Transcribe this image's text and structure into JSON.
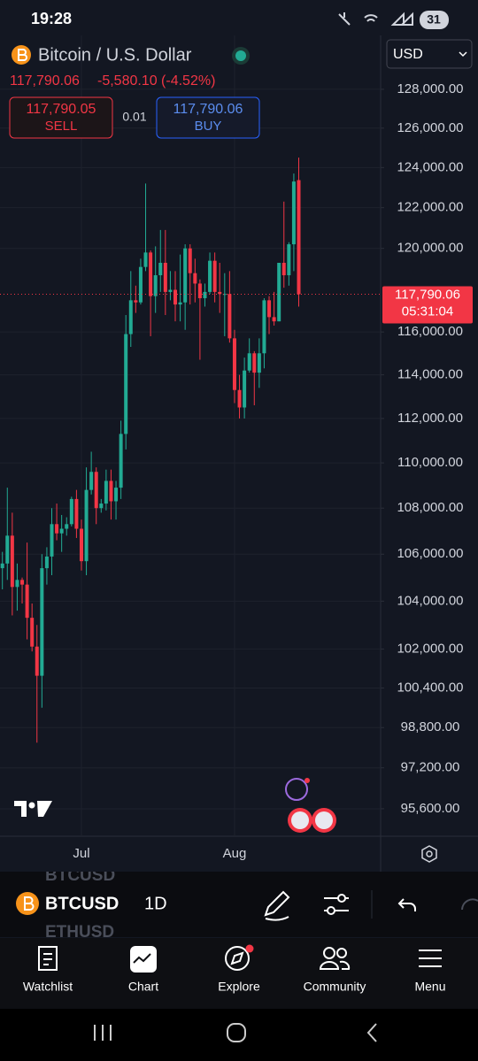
{
  "status_bar": {
    "time": "19:28",
    "battery": "31"
  },
  "header": {
    "symbol": "Bitcoin / U.S. Dollar",
    "currency": "USD",
    "price": "117,790.06",
    "change": "-5,580.10 (-4.52%)",
    "sell_price": "117,790.05",
    "sell": "SELL",
    "spread": "0.01",
    "buy_price": "117,790.06",
    "buy": "BUY"
  },
  "chart_data": {
    "type": "candlestick",
    "categories": [
      null,
      null,
      null,
      null,
      null,
      null,
      null,
      null,
      null,
      null,
      null,
      null,
      null,
      null,
      null,
      null,
      "Jul",
      null,
      null,
      null,
      null,
      null,
      null,
      null,
      null,
      null,
      null,
      null,
      null,
      null,
      null,
      null,
      null,
      null,
      null,
      null,
      null,
      null,
      null,
      null,
      null,
      null,
      null,
      null,
      null,
      null,
      null,
      "Aug",
      null,
      null,
      null,
      null,
      null,
      null,
      null,
      null,
      null,
      null,
      null,
      null,
      null
    ],
    "open": [
      105400,
      105600,
      106800,
      104600,
      104900,
      104700,
      103300,
      102100,
      100900,
      105400,
      105900,
      107300,
      106900,
      107100,
      107300,
      108400,
      107100,
      105700,
      108800,
      109600,
      108000,
      108200,
      109200,
      108300,
      108900,
      111300,
      115900,
      117500,
      117400,
      119100,
      119800,
      117700,
      118700,
      119300,
      117900,
      118000,
      117300,
      117400,
      120000,
      118800,
      118300,
      117600,
      117900,
      119400,
      117900,
      117800,
      117800,
      115700,
      113300,
      112500,
      114200,
      115000,
      114100,
      115000,
      117500,
      116700,
      116500,
      119300,
      118700,
      120200,
      123370.16
    ],
    "high": [
      106100,
      108900,
      107800,
      105600,
      105000,
      106500,
      103900,
      103000,
      106000,
      106300,
      108000,
      108200,
      107700,
      107600,
      108500,
      108800,
      107500,
      109800,
      110500,
      109800,
      108400,
      109700,
      109700,
      109200,
      111900,
      116800,
      118900,
      118200,
      119500,
      123200,
      119900,
      120100,
      120900,
      120900,
      118900,
      118900,
      119700,
      120200,
      120200,
      119500,
      118500,
      118300,
      119800,
      119800,
      119300,
      118800,
      118900,
      116100,
      114000,
      114800,
      115700,
      115100,
      115700,
      117600,
      117700,
      117900,
      119300,
      122300,
      120300,
      123700,
      124500
    ],
    "low": [
      104500,
      104900,
      103400,
      103600,
      103900,
      102400,
      101900,
      98200,
      99600,
      104700,
      105100,
      106600,
      106100,
      106800,
      107200,
      106700,
      105300,
      105100,
      108600,
      107300,
      107800,
      107900,
      107500,
      107500,
      108400,
      110600,
      115300,
      116900,
      117300,
      118900,
      115800,
      116900,
      117900,
      116800,
      117500,
      116500,
      116500,
      116100,
      117300,
      117400,
      114700,
      117200,
      117800,
      117400,
      116900,
      115800,
      115500,
      112700,
      112000,
      112000,
      114100,
      112600,
      113400,
      114300,
      115900,
      116300,
      116500,
      118100,
      118200,
      118900,
      117200
    ],
    "close": [
      105600,
      106800,
      104600,
      104900,
      104700,
      103300,
      102100,
      100900,
      105400,
      105900,
      107300,
      106900,
      107100,
      107300,
      108400,
      107100,
      105700,
      108800,
      109600,
      108000,
      108200,
      109200,
      108300,
      108900,
      111300,
      115900,
      117500,
      117400,
      119100,
      119800,
      117700,
      118700,
      119300,
      117900,
      118000,
      117300,
      117400,
      120000,
      118800,
      118300,
      117600,
      117900,
      119400,
      117900,
      117800,
      117800,
      115700,
      113300,
      112500,
      114200,
      115000,
      114100,
      115000,
      117500,
      116700,
      116500,
      119300,
      118700,
      120200,
      123300,
      117790.06
    ],
    "up_color": "#22ab94",
    "down_color": "#f23645",
    "ylim": [
      94540,
      130830
    ],
    "log_y": true,
    "grid": true,
    "yticks": [
      {
        "value": 95600,
        "label": "95,600.00"
      },
      {
        "value": 97200,
        "label": "97,200.00"
      },
      {
        "value": 98800,
        "label": "98,800.00"
      },
      {
        "value": 100400,
        "label": "100,400.00"
      },
      {
        "value": 102000,
        "label": "102,000.00"
      },
      {
        "value": 104000,
        "label": "104,000.00"
      },
      {
        "value": 106000,
        "label": "106,000.00"
      },
      {
        "value": 108000,
        "label": "108,000.00"
      },
      {
        "value": 110000,
        "label": "110,000.00"
      },
      {
        "value": 112000,
        "label": "112,000.00"
      },
      {
        "value": 114000,
        "label": "114,000.00"
      },
      {
        "value": 116000,
        "label": "116,000.00"
      },
      {
        "value": 120000,
        "label": "120,000.00"
      },
      {
        "value": 122000,
        "label": "122,000.00"
      },
      {
        "value": 124000,
        "label": "124,000.00"
      },
      {
        "value": 126000,
        "label": "126,000.00"
      },
      {
        "value": 128000,
        "label": "128,000.00"
      }
    ],
    "last_price": {
      "value": 117790.06,
      "label": "117,790.06"
    },
    "countdown": "05:31:04"
  },
  "toolbar": {
    "prev_symbol": "BTCUSD",
    "symbol": "BTCUSD",
    "next_symbol": "ETHUSD",
    "interval": "1D"
  },
  "nav": [
    "Watchlist",
    "Chart",
    "Explore",
    "Community",
    "Menu"
  ]
}
